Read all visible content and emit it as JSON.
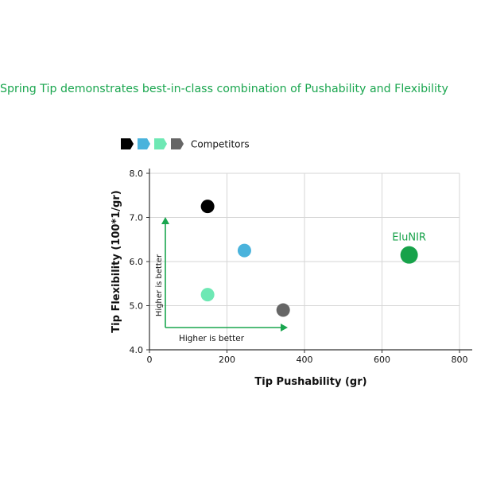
{
  "headline": "Spring Tip demonstrates best-in-class combination of Pushability and Flexibility",
  "chart_data": {
    "type": "scatter",
    "title": "",
    "xlabel": "Tip Pushability (gr)",
    "ylabel": "Tip Flexibility (100*1/gr)",
    "xlim": [
      0,
      800
    ],
    "ylim": [
      4.0,
      8.0
    ],
    "x_ticks": [
      0,
      200,
      400,
      600,
      800
    ],
    "x_tick_labels": [
      "0",
      "200",
      "400",
      "600",
      "800"
    ],
    "y_ticks": [
      4.0,
      5.0,
      6.0,
      7.0,
      8.0
    ],
    "y_tick_labels": [
      "4.0",
      "5.0",
      "6.0",
      "7.0",
      "8.0"
    ],
    "grid": true,
    "legend": {
      "position": "top-left",
      "label": "Competitors",
      "colors": [
        "#000000",
        "#4ab3dc",
        "#6ee8b4",
        "#666666"
      ]
    },
    "points": [
      {
        "x": 150,
        "y": 7.25,
        "color": "#000000",
        "size": "small"
      },
      {
        "x": 245,
        "y": 6.25,
        "color": "#4ab3dc",
        "size": "small"
      },
      {
        "x": 150,
        "y": 5.25,
        "color": "#6ee8b4",
        "size": "small"
      },
      {
        "x": 345,
        "y": 4.9,
        "color": "#666666",
        "size": "small"
      },
      {
        "x": 670,
        "y": 6.15,
        "color": "#17a24a",
        "size": "large",
        "label": "EluNIR"
      }
    ],
    "annotations": {
      "vertical_arrow": "Higher is better",
      "horizontal_arrow": "Higher is better",
      "arrow_color": "#1aa64f"
    }
  }
}
